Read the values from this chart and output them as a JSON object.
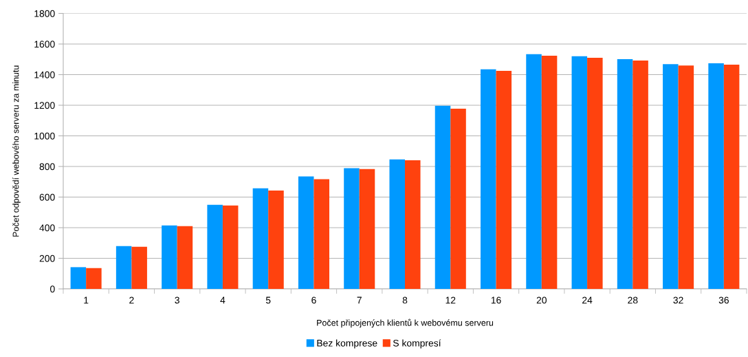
{
  "chart_data": {
    "type": "bar",
    "xlabel": "Počet připojených klientů k webovému serveru",
    "ylabel": "Počet odpovědí webového serveru za minutu",
    "categories": [
      "1",
      "2",
      "3",
      "4",
      "5",
      "6",
      "7",
      "8",
      "12",
      "16",
      "20",
      "24",
      "28",
      "32",
      "36"
    ],
    "series": [
      {
        "name": "Bez komprese",
        "color": "#0099ff",
        "values": [
          142,
          280,
          415,
          550,
          657,
          735,
          789,
          846,
          1197,
          1435,
          1534,
          1520,
          1501,
          1469,
          1474
        ]
      },
      {
        "name": "S kompresí",
        "color": "#ff420e",
        "values": [
          136,
          275,
          410,
          545,
          643,
          717,
          783,
          841,
          1177,
          1425,
          1524,
          1510,
          1492,
          1460,
          1465
        ]
      }
    ],
    "ylim": [
      0,
      1800
    ],
    "yticks": [
      0,
      200,
      400,
      600,
      800,
      1000,
      1200,
      1400,
      1600,
      1800
    ],
    "grid": "y",
    "legend": "bottom"
  }
}
